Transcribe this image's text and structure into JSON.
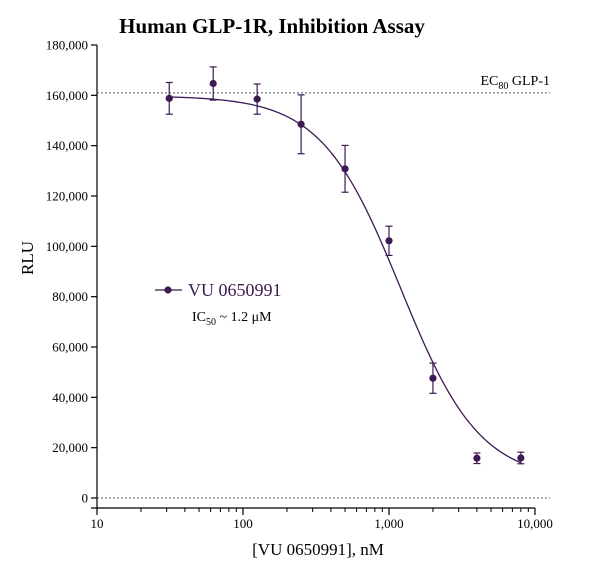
{
  "chart_data": {
    "type": "scatter",
    "title": "Human GLP-1R, Inhibition Assay",
    "xlabel": "[VU 0650991], nM",
    "ylabel": "RLU",
    "xscale": "log",
    "xlim": [
      10,
      10000
    ],
    "ylim": [
      0,
      180000
    ],
    "x_ticks": [
      10,
      100,
      1000,
      10000
    ],
    "x_tick_labels": [
      "10",
      "100",
      "1,000",
      "10,000"
    ],
    "y_ticks": [
      0,
      20000,
      40000,
      60000,
      80000,
      100000,
      120000,
      140000,
      160000,
      180000
    ],
    "y_tick_labels": [
      "0",
      "20,000",
      "40,000",
      "60,000",
      "80,000",
      "100,000",
      "120,000",
      "140,000",
      "160,000",
      "180,000"
    ],
    "grid": false,
    "legend_position": "center-left",
    "color": "#3d1a52",
    "series": [
      {
        "name": "VU 0650991",
        "x": [
          31.25,
          62.5,
          125,
          250,
          500,
          1000,
          2000,
          4000,
          8000
        ],
        "y": [
          158800,
          164700,
          158500,
          148500,
          130800,
          102200,
          47600,
          15800,
          15900
        ],
        "yerr": [
          6300,
          6600,
          6000,
          11700,
          9300,
          5800,
          6000,
          2100,
          2300
        ]
      }
    ],
    "fit": {
      "model": "four-parameter logistic",
      "top": 159800,
      "bottom": 7000,
      "ic50": 1200,
      "hill": -1.6,
      "x_range": [
        31.25,
        8000
      ]
    },
    "reference_line": {
      "y": 161000,
      "style": "dotted",
      "label_main": "EC",
      "label_sub": "80",
      "label_rest": " GLP-1"
    },
    "baseline": {
      "y": 0,
      "style": "dotted"
    },
    "annotation": {
      "prefix": "IC",
      "sub": "50",
      "rest": " ~ 1.2 μM"
    }
  }
}
